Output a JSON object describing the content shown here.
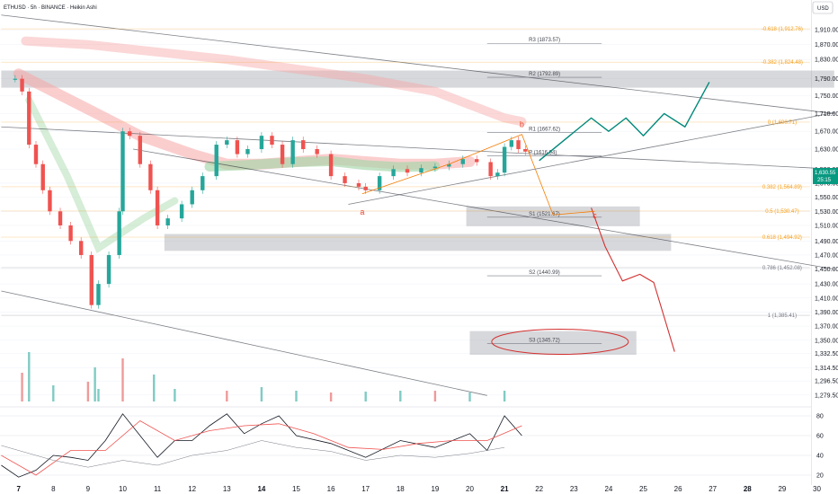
{
  "header": {
    "title": "ETHUSD · 5h · BINANCE · Heikin Ashi",
    "currency": "USD"
  },
  "last_price": {
    "value": "1,630.55",
    "countdown": "25:15"
  },
  "chart_data": [
    {
      "type": "candlestick",
      "title": "ETHUSD · 5h · BINANCE · Heikin Ashi",
      "xlabel": "",
      "ylabel": "",
      "x_ticks": [
        "7",
        "8",
        "9",
        "10",
        "11",
        "12",
        "13",
        "14",
        "15",
        "16",
        "17",
        "18",
        "19",
        "20",
        "21",
        "22",
        "23",
        "24",
        "25",
        "26",
        "27",
        "28",
        "29",
        "30"
      ],
      "y_ticks": [
        1910,
        1870,
        1830,
        1790,
        1750,
        1710,
        1670,
        1630,
        1590,
        1570,
        1550,
        1530,
        1510,
        1490,
        1470,
        1450,
        1430,
        1410,
        1390,
        1370,
        1350,
        1332.5,
        1314.5,
        1296.5,
        1279.5
      ],
      "y_tick_labels": [
        "1,910.00",
        "1,870.00",
        "1,830.00",
        "1,790.00",
        "1,750.00",
        "1,710.00",
        "1,670.00",
        "1,630.00",
        "1,590.00",
        "1,570.00",
        "1,550.00",
        "1,530.00",
        "1,510.00",
        "1,490.00",
        "1,470.00",
        "1,450.00",
        "1,430.00",
        "1,410.00",
        "1,390.00",
        "1,370.00",
        "1,350.00",
        "1,332.50",
        "1,314.50",
        "1,296.50",
        "1,279.50"
      ],
      "ylim": [
        1270,
        1930
      ],
      "series": [
        {
          "name": "",
          "x": [
            6.9,
            7.1,
            7.3,
            7.5,
            7.7,
            7.9,
            8.2,
            8.5,
            8.8,
            9.1,
            9.3,
            9.6,
            9.9,
            10.0,
            10.2,
            10.5,
            10.8,
            11.0,
            11.3,
            11.7,
            12.0,
            12.3,
            12.7,
            13.0,
            13.3,
            13.6,
            14.0,
            14.3,
            14.6,
            14.9,
            15.2,
            15.6,
            16.0,
            16.4,
            16.8,
            17.0,
            17.4,
            17.8,
            18.2,
            18.6,
            19.0,
            19.4,
            19.8,
            20.2,
            20.6,
            20.8,
            21.0,
            21.2,
            21.4,
            21.6
          ],
          "close": [
            1790,
            1760,
            1640,
            1600,
            1560,
            1530,
            1510,
            1490,
            1470,
            1400,
            1430,
            1470,
            1530,
            1670,
            1660,
            1600,
            1560,
            1510,
            1520,
            1540,
            1560,
            1580,
            1640,
            1650,
            1620,
            1630,
            1660,
            1640,
            1600,
            1650,
            1630,
            1620,
            1580,
            1570,
            1565,
            1560,
            1580,
            1590,
            1585,
            1592,
            1595,
            1600,
            1610,
            1604,
            1580,
            1585,
            1635,
            1650,
            1630,
            1625
          ]
        },
        {
          "name": "Volume",
          "x": [
            7.1,
            7.3,
            8.0,
            9.0,
            9.2,
            9.3,
            10.0,
            10.9,
            11.5,
            13.0,
            14.0,
            15.0,
            16.0,
            17.0,
            18.0,
            19.0,
            20.0,
            21.0
          ],
          "values": [
            32,
            55,
            18,
            22,
            38,
            14,
            48,
            30,
            14,
            12,
            16,
            12,
            10,
            11,
            12,
            12,
            10,
            12
          ]
        }
      ],
      "levels": [
        {
          "label": "R3 (1873.57)",
          "value": 1873.57
        },
        {
          "label": "R2 (1792.89)",
          "value": 1792.89
        },
        {
          "label": "R1 (1667.62)",
          "value": 1667.62
        },
        {
          "label": "P (1616.94)",
          "value": 1616.94
        },
        {
          "label": "S1 (1521.67)",
          "value": 1521.67
        },
        {
          "label": "S2 (1440.99)",
          "value": 1440.99
        },
        {
          "label": "S3 (1345.72)",
          "value": 1345.72
        }
      ],
      "fib_levels": [
        {
          "label": "-0.618 (1,912.76)",
          "value": 1912.76
        },
        {
          "label": "-0.382 (1,824.48)",
          "value": 1824.48
        },
        {
          "label": "0 (1,690.71)",
          "value": 1690.71
        },
        {
          "label": "0.382 (1,564.89)",
          "value": 1564.89
        },
        {
          "label": "0.5 (1,530.47)",
          "value": 1530.47
        },
        {
          "label": "0.618 (1,494.92)",
          "value": 1494.92
        },
        {
          "label": "0.786 (1,452.08)",
          "value": 1452.08
        },
        {
          "label": "1 (1,385.41)",
          "value": 1385.41
        }
      ],
      "zones": [
        {
          "name": "upper-resistance-zone",
          "from_x": 6.5,
          "to_x": 30.5,
          "from_y": 1769,
          "to_y": 1807
        },
        {
          "name": "s1-zone",
          "from_x": 19.9,
          "to_x": 24.9,
          "from_y": 1509,
          "to_y": 1537
        },
        {
          "name": "support-zone",
          "from_x": 11.2,
          "to_x": 25.8,
          "from_y": 1476,
          "to_y": 1499
        },
        {
          "name": "s3-zone",
          "from_x": 20.0,
          "to_x": 24.8,
          "from_y": 1331,
          "to_y": 1363
        }
      ],
      "wave_labels": [
        "a",
        "b",
        "c"
      ],
      "grid": true,
      "legend": "none"
    },
    {
      "type": "line",
      "title": "",
      "y_ticks": [
        80,
        60,
        40,
        20
      ],
      "ylim": [
        10,
        90
      ],
      "grid": true
    }
  ]
}
